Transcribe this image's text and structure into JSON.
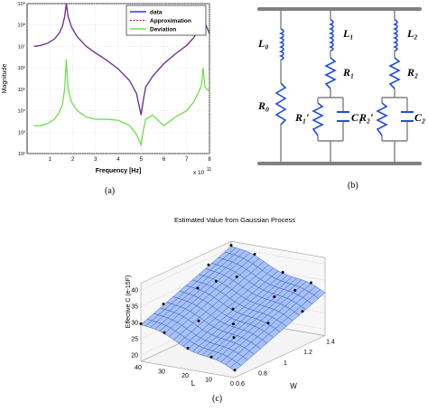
{
  "figure": {
    "captions": {
      "a": "(a)",
      "b": "(b)",
      "c": "(c)"
    }
  },
  "panel_a": {
    "ylabel": "Magnitude",
    "xlabel": "Frequency [Hz]",
    "x_exponent": "x 10",
    "x_exponent_power": "11",
    "y_ticks": [
      "10²",
      "10³",
      "10⁴",
      "10⁵",
      "10⁶",
      "10⁷",
      "10⁸",
      "10⁹"
    ],
    "x_ticks": [
      "1",
      "2",
      "3",
      "4",
      "5",
      "6",
      "7",
      "8"
    ],
    "legend": [
      {
        "label": "data",
        "color": "#1f3fd6"
      },
      {
        "label": "Approximation",
        "color": "#c0203c"
      },
      {
        "label": "Deviation",
        "color": "#6de04a"
      }
    ]
  },
  "panel_b": {
    "labels": {
      "L0": "L₀",
      "R0": "R₀",
      "L1": "L₁",
      "R1": "R₁",
      "R1p": "R₁′",
      "C1": "C₁",
      "L2": "L₂",
      "R2": "R₂",
      "R2p": "R₂′",
      "C2": "C₂"
    },
    "wire_color": "#808080",
    "component_color": "#1f4fd6"
  },
  "chart_data": [
    {
      "type": "line",
      "title": "",
      "xlabel": "Frequency [Hz]",
      "ylabel": "Magnitude",
      "x_scale_note": "x 10^11",
      "y_scale": "log",
      "xlim": [
        0,
        8
      ],
      "ylim_log10": [
        2,
        9
      ],
      "grid": true,
      "legend": "top-right",
      "x": [
        0.3,
        0.6,
        0.9,
        1.2,
        1.4,
        1.55,
        1.65,
        1.72,
        1.8,
        1.95,
        2.2,
        2.6,
        3.0,
        3.5,
        4.0,
        4.5,
        4.8,
        5.0,
        5.1,
        5.2,
        5.5,
        6.0,
        6.5,
        7.0,
        7.3,
        7.5,
        7.65,
        7.72,
        7.8,
        8.0
      ],
      "series": [
        {
          "name": "data",
          "values_log10": [
            7.0,
            7.05,
            7.15,
            7.35,
            7.6,
            7.95,
            8.4,
            9.0,
            8.4,
            7.9,
            7.45,
            7.0,
            6.7,
            6.35,
            5.95,
            5.4,
            4.8,
            3.8,
            4.5,
            5.1,
            5.6,
            6.2,
            6.65,
            7.05,
            7.4,
            7.75,
            8.2,
            8.6,
            8.1,
            7.6
          ]
        },
        {
          "name": "Approximation",
          "values_log10": [
            7.0,
            7.05,
            7.15,
            7.35,
            7.6,
            7.95,
            8.4,
            9.0,
            8.4,
            7.9,
            7.45,
            7.0,
            6.7,
            6.35,
            5.95,
            5.4,
            4.8,
            3.8,
            4.5,
            5.1,
            5.6,
            6.2,
            6.65,
            7.05,
            7.4,
            7.75,
            8.2,
            8.6,
            8.1,
            7.6
          ]
        },
        {
          "name": "Deviation",
          "values_log10": [
            3.3,
            3.3,
            3.4,
            3.6,
            3.9,
            4.3,
            5.0,
            6.4,
            5.0,
            4.4,
            4.0,
            3.7,
            3.6,
            3.6,
            3.55,
            3.3,
            2.9,
            2.4,
            3.1,
            3.6,
            3.8,
            3.3,
            3.7,
            4.0,
            4.4,
            4.8,
            5.2,
            6.0,
            5.1,
            4.9
          ]
        }
      ]
    },
    {
      "type": "surface",
      "title": "Estimated Value from Gaussian Process",
      "xlabel": "L",
      "ylabel": "W",
      "zlabel": "Effective C (e-15F)",
      "x_ticks": [
        "40",
        "30",
        "20",
        "10",
        "0"
      ],
      "y_ticks": [
        "0.6",
        "0.8",
        "1",
        "1.2",
        "1.4"
      ],
      "z_ticks": [
        "20",
        "25",
        "30",
        "35",
        "40"
      ],
      "xlim": [
        0,
        40
      ],
      "ylim": [
        0.6,
        1.4
      ],
      "zlim": [
        18,
        42
      ],
      "grid": true,
      "surface_color": "#9ab8f2",
      "mesh_color": "#2a55d0"
    }
  ]
}
